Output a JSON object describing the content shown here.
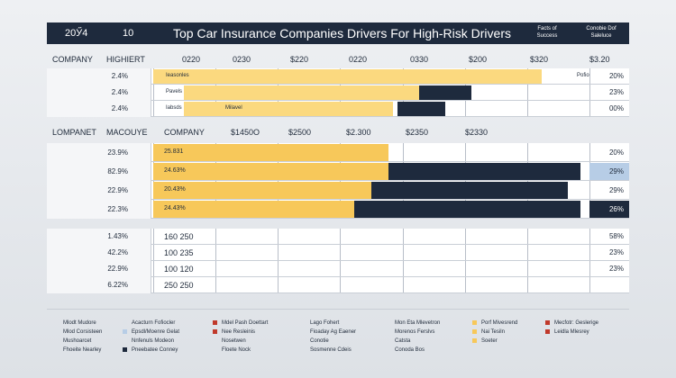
{
  "header": {
    "left_a": "20Ӳ4",
    "left_b": "10",
    "title": "Top Car Insurance Companies Drivers For High-Risk Drivers",
    "right_a": [
      "Facts of",
      "Success"
    ],
    "right_b": [
      "Conobie Dof",
      "Saleluce"
    ]
  },
  "colors": {
    "yellow": "#f7c85a",
    "yellow_light": "#fbd97f",
    "navy": "#1e2a3d",
    "blue_light": "#b7cde6",
    "red": "#c0392b"
  },
  "chart_data": [
    {
      "type": "bar",
      "title": "Top Car Insurance Companies Drivers For High-Risk Drivers",
      "header": {
        "col_a": "COMPANY",
        "col_b": "HIGHIERT",
        "ticks": [
          "0220",
          "0230",
          "$220",
          "0220",
          "0330",
          "$200",
          "$320",
          "$3.20"
        ]
      },
      "rows": [
        {
          "pct": "2.4%",
          "tag": "Ieasonles",
          "tag2": "Pofio",
          "value": "20%",
          "seg_yellow": [
            0.0,
            0.89
          ],
          "seg_navy": null
        },
        {
          "pct": "2.4%",
          "tag": "Pavels",
          "tag2": "",
          "value": "23%",
          "seg_yellow": [
            0.07,
            0.61
          ],
          "seg_navy": [
            0.61,
            0.73
          ]
        },
        {
          "pct": "2.4%",
          "tag": "Iabsds",
          "tag2": "Milavel",
          "value": "00%",
          "seg_yellow": [
            0.07,
            0.55
          ],
          "seg_navy": [
            0.56,
            0.67
          ]
        }
      ]
    },
    {
      "type": "bar",
      "header": {
        "col_a": "LOMPANET",
        "col_b": "MACOUYE",
        "col_c": "COMPANY",
        "ticks": [
          "$1450O",
          "$2500",
          "$2.300",
          "$2350",
          "$2330"
        ]
      },
      "rows": [
        {
          "pct": "23.9%",
          "label": "25.831",
          "value": "20%",
          "seg_yellow": [
            0.0,
            0.54
          ],
          "seg_navy": null,
          "hl": null
        },
        {
          "pct": "82.9%",
          "label": "24.63%",
          "value": "29%",
          "seg_yellow": [
            0.0,
            0.54
          ],
          "seg_navy": [
            0.54,
            0.98
          ],
          "hl": "light"
        },
        {
          "pct": "22.9%",
          "label": "20.43%",
          "value": "29%",
          "seg_yellow": [
            0.0,
            0.5
          ],
          "seg_navy": [
            0.5,
            0.95
          ],
          "hl": null
        },
        {
          "pct": "22.3%",
          "label": "24.43%",
          "value": "26%",
          "seg_yellow": [
            0.0,
            0.46
          ],
          "seg_navy": [
            0.46,
            0.98
          ],
          "hl": "dark"
        }
      ]
    },
    {
      "type": "table",
      "rows": [
        {
          "pct": "1.43%",
          "label": "160 250",
          "value": "58%"
        },
        {
          "pct": "42.2%",
          "label": "100 235",
          "value": "23%"
        },
        {
          "pct": "22.9%",
          "label": "100 120",
          "value": "23%"
        },
        {
          "pct": "6.22%",
          "label": "250 250",
          "value": ""
        }
      ]
    }
  ],
  "legend": [
    {
      "color": "",
      "items": [
        "Mlodt Mudore",
        "Mlod Corsisteen",
        "Mushoarcet",
        "Fhoeite Nearley"
      ]
    },
    {
      "color": "#1e2a3d",
      "items": [
        "Acacturn Fofiocler",
        "Epsdl/Moenre Gelat",
        "Nnfenuls Modeon",
        "Pneebatee Conney"
      ]
    },
    {
      "color": "#c0392b",
      "items": [
        "Mdel Pash Doettart",
        "Nee Resleinis",
        "Nosetwen",
        "Floete Nock"
      ]
    },
    {
      "color": "",
      "items": [
        "Lago Fohert",
        "Fioaday Ag Eaener",
        "Conotie",
        "Sosmenne Cdeis"
      ]
    },
    {
      "color": "",
      "items": [
        "Mon Eta Mlevetron",
        "Morenos Ferslvs",
        "Catsta",
        "Conoda Bos"
      ]
    },
    {
      "color": "#f7c85a",
      "items": [
        "Porf Mivesrend",
        "Nai Tesiln",
        "Soeter"
      ]
    },
    {
      "color": "#c0392b",
      "items": [
        "Mecfotr: Geslerige",
        "Leidla Mlesrey"
      ]
    }
  ]
}
